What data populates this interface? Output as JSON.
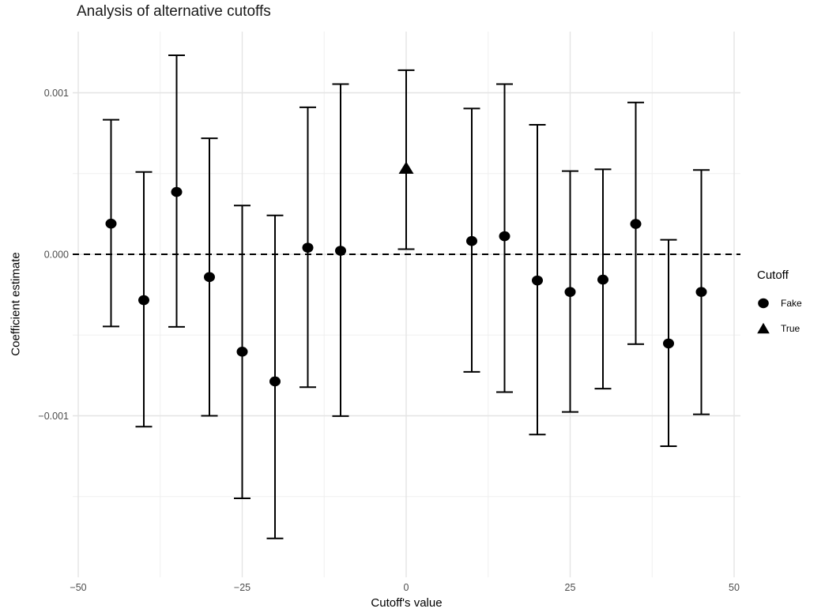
{
  "title": "Analysis of alternative cutoffs",
  "axes": {
    "x": {
      "label": "Cutoff's value",
      "ticks": [
        "−50",
        "−25",
        "0",
        "25",
        "50"
      ],
      "tick_values": [
        -50,
        -25,
        0,
        25,
        50
      ],
      "minor_values": [
        -37.5,
        -12.5,
        12.5,
        37.5
      ]
    },
    "y": {
      "label": "Coefficient estimate",
      "ticks": [
        "0.001",
        "0.000",
        "−0.001"
      ],
      "tick_values": [
        0.001,
        0,
        -0.001
      ],
      "minor_values": [
        0.0015,
        0.0005,
        -0.0005,
        -0.0015
      ]
    }
  },
  "legend": {
    "title": "Cutoff",
    "items": [
      {
        "label": "Fake",
        "marker": "circle"
      },
      {
        "label": "True",
        "marker": "triangle"
      }
    ]
  },
  "colors": {
    "points": "#000000",
    "zero_line": "#000000",
    "gridline_major": "#e4e4e4",
    "gridline_minor": "#efefef",
    "tick_text": "#4d4d4d",
    "title_text": "#1a1a1a",
    "background": "#ffffff"
  },
  "chart_data": {
    "type": "scatter",
    "subtype": "coefficient-plot-with-error-bars",
    "title": "Analysis of alternative cutoffs",
    "xlabel": "Cutoff's value",
    "ylabel": "Coefficient estimate",
    "xlim": [
      -50.7,
      51
    ],
    "ylim": [
      -0.002,
      0.00138
    ],
    "grid": true,
    "legend_position": "right",
    "reference_line": {
      "type": "horizontal-dashed",
      "y": 0
    },
    "series": [
      {
        "name": "Fake",
        "marker": "circle",
        "points": [
          {
            "x": -45,
            "y": 0.00019,
            "lo": -0.000447,
            "hi": 0.000833
          },
          {
            "x": -40,
            "y": -0.000284,
            "lo": -0.001067,
            "hi": 0.00051
          },
          {
            "x": -35,
            "y": 0.000386,
            "lo": -0.000449,
            "hi": 0.001232
          },
          {
            "x": -30,
            "y": -0.000141,
            "lo": -0.001,
            "hi": 0.000718
          },
          {
            "x": -25,
            "y": -0.000603,
            "lo": -0.001511,
            "hi": 0.000302
          },
          {
            "x": -20,
            "y": -0.000787,
            "lo": -0.001759,
            "hi": 0.000241
          },
          {
            "x": -15,
            "y": 4.1e-05,
            "lo": -0.000823,
            "hi": 0.00091
          },
          {
            "x": -10,
            "y": 2.2e-05,
            "lo": -0.001002,
            "hi": 0.001054
          },
          {
            "x": 10,
            "y": 8.2e-05,
            "lo": -0.000728,
            "hi": 0.000903
          },
          {
            "x": 15,
            "y": 0.000112,
            "lo": -0.000853,
            "hi": 0.001054
          },
          {
            "x": 20,
            "y": -0.000162,
            "lo": -0.001116,
            "hi": 0.000802
          },
          {
            "x": 25,
            "y": -0.000233,
            "lo": -0.000976,
            "hi": 0.000515
          },
          {
            "x": 30,
            "y": -0.000157,
            "lo": -0.000832,
            "hi": 0.000526
          },
          {
            "x": 35,
            "y": 0.000188,
            "lo": -0.000556,
            "hi": 0.00094
          },
          {
            "x": 40,
            "y": -0.000552,
            "lo": -0.001188,
            "hi": 9e-05
          },
          {
            "x": 45,
            "y": -0.000233,
            "lo": -0.000991,
            "hi": 0.000522
          }
        ]
      },
      {
        "name": "True",
        "marker": "triangle",
        "points": [
          {
            "x": 0,
            "y": 0.000532,
            "lo": 3.2e-05,
            "hi": 0.00114
          }
        ]
      }
    ]
  }
}
